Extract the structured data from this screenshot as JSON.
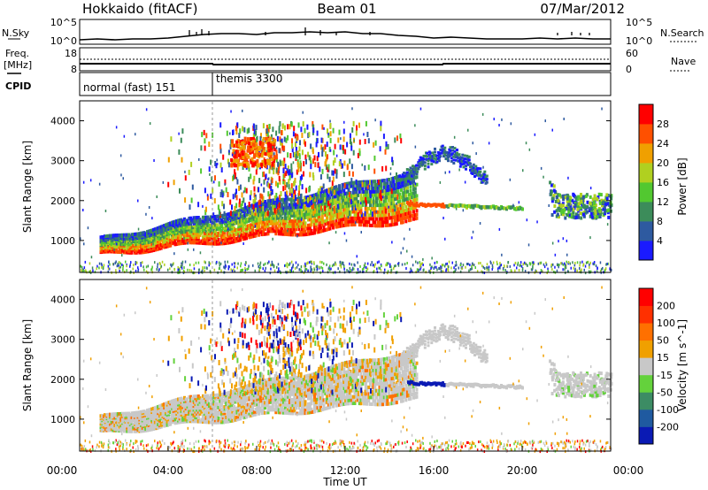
{
  "header": {
    "station": "Hokkaido (fitACF)",
    "beam": "Beam 01",
    "date": "07/Mar/2012"
  },
  "panels": {
    "nsky": {
      "left_label": "N.Sky",
      "right_label": "N.Search",
      "left_ticks": [
        "10^5",
        "10^0"
      ],
      "right_ticks": [
        "10^5",
        "10^0"
      ]
    },
    "freq": {
      "left_label_1": "Freq.",
      "left_label_2": "[MHz]",
      "left_ticks": [
        "18",
        "8"
      ],
      "right_ticks": [
        "60",
        "0"
      ],
      "right_label": "Nave"
    },
    "cpid": {
      "label": "CPID",
      "segments": [
        "normal (fast) 151",
        "themis 3300"
      ]
    }
  },
  "chart_data": [
    {
      "type": "heatmap",
      "title": "",
      "parameter": "Power",
      "xlabel": "",
      "ylabel": "Slant Range [km]",
      "ylim": [
        200,
        4500
      ],
      "yticks": [
        "1000",
        "2000",
        "3000",
        "4000"
      ],
      "colorbar": {
        "label": "Power [dB]",
        "ticks": [
          "4",
          "8",
          "12",
          "16",
          "20",
          "24",
          "28"
        ],
        "colors": [
          "#1a1aff",
          "#2e5aa0",
          "#3c8c5a",
          "#52c830",
          "#b0d020",
          "#f0a000",
          "#ff5000",
          "#ff0000"
        ]
      }
    },
    {
      "type": "heatmap",
      "title": "",
      "parameter": "Velocity",
      "xlabel": "Time UT",
      "ylabel": "Slant Range [km]",
      "ylim": [
        200,
        4500
      ],
      "yticks": [
        "1000",
        "2000",
        "3000",
        "4000"
      ],
      "xticks": [
        "00:00",
        "04:00",
        "08:00",
        "12:00",
        "16:00",
        "20:00",
        "00:00"
      ],
      "colorbar": {
        "label": "Velocity [m s^-1]",
        "ticks": [
          "200",
          "100",
          "50",
          "15",
          "-15",
          "-50",
          "-100",
          "-200"
        ],
        "colors": [
          "#0a1ab4",
          "#1f5aa0",
          "#3c8c64",
          "#64d23c",
          "#c8c8c8",
          "#f0a000",
          "#ff7000",
          "#ff3000",
          "#ff0000"
        ]
      }
    }
  ]
}
